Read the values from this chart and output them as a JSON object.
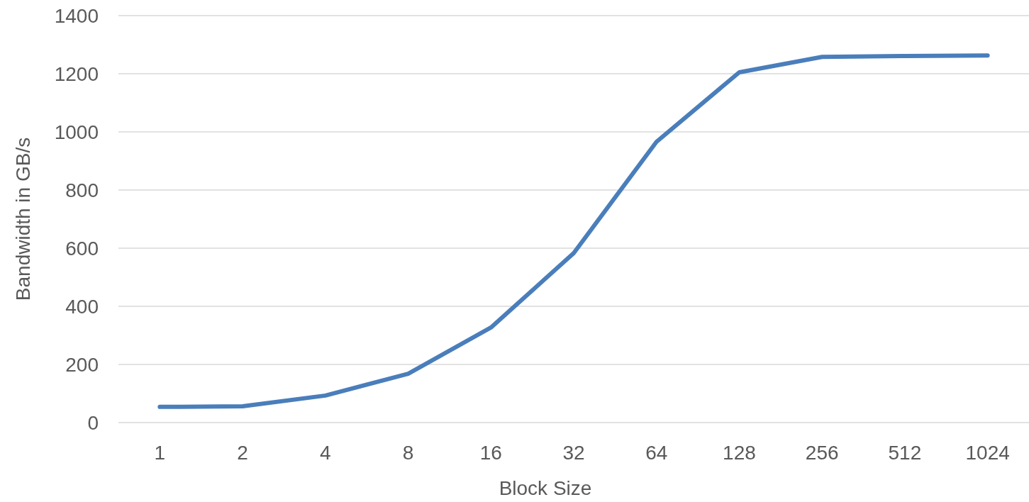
{
  "chart_data": {
    "type": "line",
    "xlabel": "Block Size",
    "ylabel": "Bandwidth in GB/s",
    "categories": [
      "1",
      "2",
      "4",
      "8",
      "16",
      "32",
      "64",
      "128",
      "256",
      "512",
      "1024"
    ],
    "series": [
      {
        "color": "#4a7ebb",
        "values": [
          54,
          56,
          93,
          168,
          327,
          583,
          966,
          1205,
          1258,
          1261,
          1263
        ]
      }
    ],
    "ylim": [
      0,
      1400
    ],
    "yticks": [
      0,
      200,
      400,
      600,
      800,
      1000,
      1200,
      1400
    ],
    "grid": "y",
    "marker": "none",
    "line_style": "solid"
  }
}
